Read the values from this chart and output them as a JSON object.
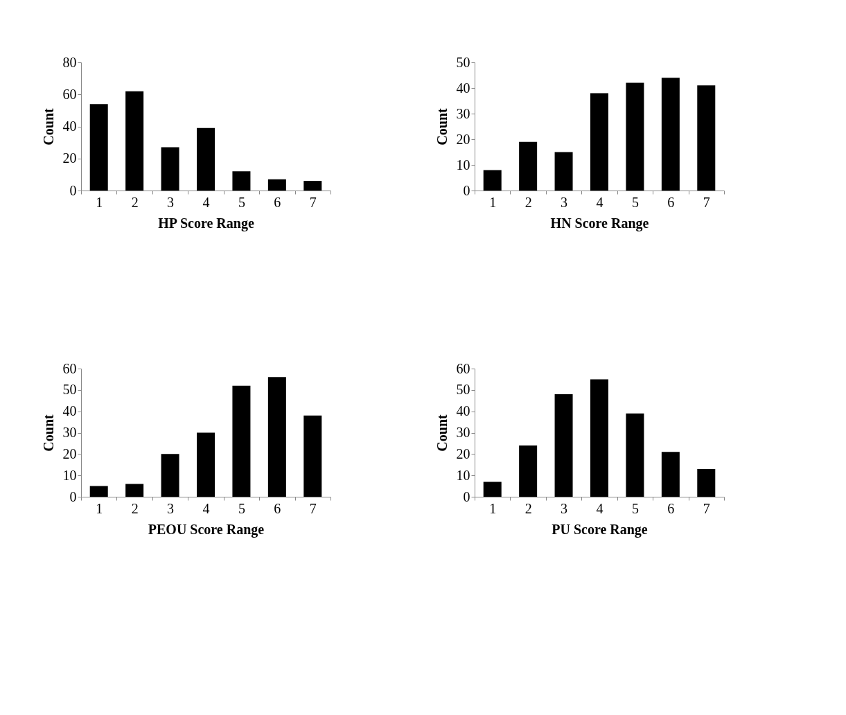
{
  "chart_data": [
    {
      "type": "bar",
      "xlabel": "HP Score Range",
      "ylabel": "Count",
      "categories": [
        "1",
        "2",
        "3",
        "4",
        "5",
        "6",
        "7"
      ],
      "values": [
        54,
        62,
        27,
        39,
        12,
        7,
        6
      ],
      "color": "#000000",
      "ylim": [
        0,
        80
      ],
      "yticks": [
        0,
        20,
        40,
        60,
        80
      ],
      "grid": false
    },
    {
      "type": "bar",
      "xlabel": "HN Score Range",
      "ylabel": "Count",
      "categories": [
        "1",
        "2",
        "3",
        "4",
        "5",
        "6",
        "7"
      ],
      "values": [
        8,
        19,
        15,
        38,
        42,
        44,
        41
      ],
      "color": "#000000",
      "ylim": [
        0,
        50
      ],
      "yticks": [
        0,
        10,
        20,
        30,
        40,
        50
      ],
      "grid": false
    },
    {
      "type": "bar",
      "xlabel": "PEOU Score Range",
      "ylabel": "Count",
      "categories": [
        "1",
        "2",
        "3",
        "4",
        "5",
        "6",
        "7"
      ],
      "values": [
        5,
        6,
        20,
        30,
        52,
        56,
        38
      ],
      "color": "#000000",
      "ylim": [
        0,
        60
      ],
      "yticks": [
        0,
        10,
        20,
        30,
        40,
        50,
        60
      ],
      "grid": false
    },
    {
      "type": "bar",
      "xlabel": "PU Score Range",
      "ylabel": "Count",
      "categories": [
        "1",
        "2",
        "3",
        "4",
        "5",
        "6",
        "7"
      ],
      "values": [
        7,
        24,
        48,
        55,
        39,
        21,
        13
      ],
      "color": "#000000",
      "ylim": [
        0,
        60
      ],
      "yticks": [
        0,
        10,
        20,
        30,
        40,
        50,
        60
      ],
      "grid": false
    }
  ]
}
